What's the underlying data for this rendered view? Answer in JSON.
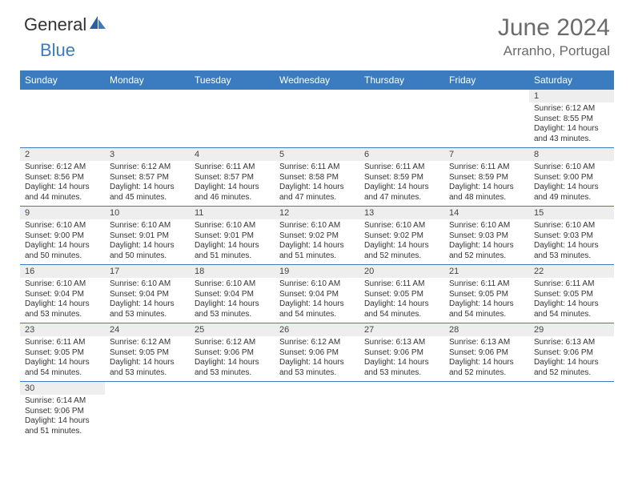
{
  "brand": {
    "part1": "General",
    "part2": "Blue"
  },
  "title": "June 2024",
  "location": "Arranho, Portugal",
  "colors": {
    "header_bg": "#3b7bbf",
    "header_text": "#ffffff",
    "daynum_bg": "#eeeeee",
    "cell_border": "#3b7bbf",
    "body_text": "#333333",
    "title_text": "#6b6b6b"
  },
  "day_names": [
    "Sunday",
    "Monday",
    "Tuesday",
    "Wednesday",
    "Thursday",
    "Friday",
    "Saturday"
  ],
  "weeks": [
    [
      null,
      null,
      null,
      null,
      null,
      null,
      {
        "n": "1",
        "sr": "Sunrise: 6:12 AM",
        "ss": "Sunset: 8:55 PM",
        "dl": "Daylight: 14 hours and 43 minutes."
      }
    ],
    [
      {
        "n": "2",
        "sr": "Sunrise: 6:12 AM",
        "ss": "Sunset: 8:56 PM",
        "dl": "Daylight: 14 hours and 44 minutes."
      },
      {
        "n": "3",
        "sr": "Sunrise: 6:12 AM",
        "ss": "Sunset: 8:57 PM",
        "dl": "Daylight: 14 hours and 45 minutes."
      },
      {
        "n": "4",
        "sr": "Sunrise: 6:11 AM",
        "ss": "Sunset: 8:57 PM",
        "dl": "Daylight: 14 hours and 46 minutes."
      },
      {
        "n": "5",
        "sr": "Sunrise: 6:11 AM",
        "ss": "Sunset: 8:58 PM",
        "dl": "Daylight: 14 hours and 47 minutes."
      },
      {
        "n": "6",
        "sr": "Sunrise: 6:11 AM",
        "ss": "Sunset: 8:59 PM",
        "dl": "Daylight: 14 hours and 47 minutes."
      },
      {
        "n": "7",
        "sr": "Sunrise: 6:11 AM",
        "ss": "Sunset: 8:59 PM",
        "dl": "Daylight: 14 hours and 48 minutes."
      },
      {
        "n": "8",
        "sr": "Sunrise: 6:10 AM",
        "ss": "Sunset: 9:00 PM",
        "dl": "Daylight: 14 hours and 49 minutes."
      }
    ],
    [
      {
        "n": "9",
        "sr": "Sunrise: 6:10 AM",
        "ss": "Sunset: 9:00 PM",
        "dl": "Daylight: 14 hours and 50 minutes."
      },
      {
        "n": "10",
        "sr": "Sunrise: 6:10 AM",
        "ss": "Sunset: 9:01 PM",
        "dl": "Daylight: 14 hours and 50 minutes."
      },
      {
        "n": "11",
        "sr": "Sunrise: 6:10 AM",
        "ss": "Sunset: 9:01 PM",
        "dl": "Daylight: 14 hours and 51 minutes."
      },
      {
        "n": "12",
        "sr": "Sunrise: 6:10 AM",
        "ss": "Sunset: 9:02 PM",
        "dl": "Daylight: 14 hours and 51 minutes."
      },
      {
        "n": "13",
        "sr": "Sunrise: 6:10 AM",
        "ss": "Sunset: 9:02 PM",
        "dl": "Daylight: 14 hours and 52 minutes."
      },
      {
        "n": "14",
        "sr": "Sunrise: 6:10 AM",
        "ss": "Sunset: 9:03 PM",
        "dl": "Daylight: 14 hours and 52 minutes."
      },
      {
        "n": "15",
        "sr": "Sunrise: 6:10 AM",
        "ss": "Sunset: 9:03 PM",
        "dl": "Daylight: 14 hours and 53 minutes."
      }
    ],
    [
      {
        "n": "16",
        "sr": "Sunrise: 6:10 AM",
        "ss": "Sunset: 9:04 PM",
        "dl": "Daylight: 14 hours and 53 minutes."
      },
      {
        "n": "17",
        "sr": "Sunrise: 6:10 AM",
        "ss": "Sunset: 9:04 PM",
        "dl": "Daylight: 14 hours and 53 minutes."
      },
      {
        "n": "18",
        "sr": "Sunrise: 6:10 AM",
        "ss": "Sunset: 9:04 PM",
        "dl": "Daylight: 14 hours and 53 minutes."
      },
      {
        "n": "19",
        "sr": "Sunrise: 6:10 AM",
        "ss": "Sunset: 9:04 PM",
        "dl": "Daylight: 14 hours and 54 minutes."
      },
      {
        "n": "20",
        "sr": "Sunrise: 6:11 AM",
        "ss": "Sunset: 9:05 PM",
        "dl": "Daylight: 14 hours and 54 minutes."
      },
      {
        "n": "21",
        "sr": "Sunrise: 6:11 AM",
        "ss": "Sunset: 9:05 PM",
        "dl": "Daylight: 14 hours and 54 minutes."
      },
      {
        "n": "22",
        "sr": "Sunrise: 6:11 AM",
        "ss": "Sunset: 9:05 PM",
        "dl": "Daylight: 14 hours and 54 minutes."
      }
    ],
    [
      {
        "n": "23",
        "sr": "Sunrise: 6:11 AM",
        "ss": "Sunset: 9:05 PM",
        "dl": "Daylight: 14 hours and 54 minutes."
      },
      {
        "n": "24",
        "sr": "Sunrise: 6:12 AM",
        "ss": "Sunset: 9:05 PM",
        "dl": "Daylight: 14 hours and 53 minutes."
      },
      {
        "n": "25",
        "sr": "Sunrise: 6:12 AM",
        "ss": "Sunset: 9:06 PM",
        "dl": "Daylight: 14 hours and 53 minutes."
      },
      {
        "n": "26",
        "sr": "Sunrise: 6:12 AM",
        "ss": "Sunset: 9:06 PM",
        "dl": "Daylight: 14 hours and 53 minutes."
      },
      {
        "n": "27",
        "sr": "Sunrise: 6:13 AM",
        "ss": "Sunset: 9:06 PM",
        "dl": "Daylight: 14 hours and 53 minutes."
      },
      {
        "n": "28",
        "sr": "Sunrise: 6:13 AM",
        "ss": "Sunset: 9:06 PM",
        "dl": "Daylight: 14 hours and 52 minutes."
      },
      {
        "n": "29",
        "sr": "Sunrise: 6:13 AM",
        "ss": "Sunset: 9:06 PM",
        "dl": "Daylight: 14 hours and 52 minutes."
      }
    ],
    [
      {
        "n": "30",
        "sr": "Sunrise: 6:14 AM",
        "ss": "Sunset: 9:06 PM",
        "dl": "Daylight: 14 hours and 51 minutes."
      },
      null,
      null,
      null,
      null,
      null,
      null
    ]
  ]
}
